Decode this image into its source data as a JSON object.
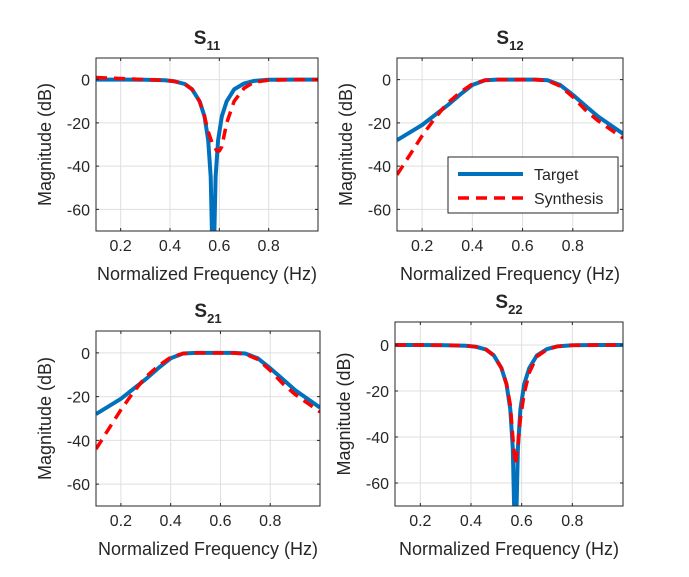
{
  "legend_labels": [
    "Target",
    "Synthesis"
  ],
  "colors": {
    "target": "#0072BD",
    "synthesis": "#FF0000",
    "grid": "#DFDFDF",
    "axis": "#262626"
  },
  "chart_data": [
    {
      "type": "line",
      "title": "S",
      "title_sub": "11",
      "xlabel": "Normalized Frequency (Hz)",
      "ylabel": "Magnitude (dB)",
      "xlim": [
        0.1,
        1.0
      ],
      "ylim": [
        -70,
        10
      ],
      "xticks": [
        0.2,
        0.4,
        0.6,
        0.8
      ],
      "yticks": [
        0,
        -20,
        -40,
        -60
      ],
      "grid": true,
      "series": [
        {
          "name": "Target",
          "x": [
            0.1,
            0.2,
            0.3,
            0.38,
            0.42,
            0.46,
            0.49,
            0.52,
            0.54,
            0.555,
            0.565,
            0.57,
            0.575,
            0.58,
            0.585,
            0.595,
            0.61,
            0.63,
            0.66,
            0.7,
            0.74,
            0.8,
            0.9,
            1.0
          ],
          "y": [
            0,
            0,
            -0.1,
            -0.3,
            -0.8,
            -2,
            -4.5,
            -10,
            -17,
            -28,
            -45,
            -70,
            -70,
            -70,
            -45,
            -28,
            -17,
            -10,
            -4.5,
            -1.8,
            -0.6,
            -0.1,
            0,
            0
          ]
        },
        {
          "name": "Synthesis",
          "x": [
            0.1,
            0.2,
            0.3,
            0.38,
            0.42,
            0.46,
            0.49,
            0.52,
            0.54,
            0.555,
            0.57,
            0.58,
            0.59,
            0.6,
            0.61,
            0.63,
            0.66,
            0.7,
            0.74,
            0.8,
            0.9,
            1.0
          ],
          "y": [
            1,
            0.5,
            0,
            -0.3,
            -0.8,
            -2,
            -4.5,
            -10,
            -17,
            -24,
            -29,
            -31,
            -33,
            -33,
            -31,
            -20,
            -10,
            -4,
            -1.2,
            -0.2,
            0,
            0
          ]
        }
      ]
    },
    {
      "type": "line",
      "title": "S",
      "title_sub": "12",
      "xlabel": "Normalized Frequency (Hz)",
      "ylabel": "Magnitude (dB)",
      "xlim": [
        0.1,
        1.0
      ],
      "ylim": [
        -70,
        10
      ],
      "xticks": [
        0.2,
        0.4,
        0.6,
        0.8
      ],
      "yticks": [
        0,
        -20,
        -40,
        -60
      ],
      "grid": true,
      "legend": "inside-right",
      "series": [
        {
          "name": "Target",
          "x": [
            0.1,
            0.2,
            0.3,
            0.35,
            0.4,
            0.45,
            0.5,
            0.55,
            0.6,
            0.65,
            0.7,
            0.75,
            0.8,
            0.85,
            0.9,
            1.0
          ],
          "y": [
            -28,
            -21,
            -12,
            -7,
            -2.5,
            -0.3,
            0,
            0,
            0,
            0,
            -0.3,
            -2.5,
            -7,
            -12,
            -17,
            -25
          ]
        },
        {
          "name": "Synthesis",
          "x": [
            0.1,
            0.15,
            0.2,
            0.25,
            0.3,
            0.35,
            0.4,
            0.45,
            0.5,
            0.55,
            0.6,
            0.65,
            0.7,
            0.75,
            0.8,
            0.85,
            0.9,
            1.0
          ],
          "y": [
            -44,
            -35,
            -26,
            -18,
            -11,
            -6,
            -2,
            -0.3,
            0,
            0,
            0,
            0,
            -0.5,
            -3,
            -8,
            -14,
            -19,
            -27
          ]
        }
      ]
    },
    {
      "type": "line",
      "title": "S",
      "title_sub": "21",
      "xlabel": "Normalized Frequency (Hz)",
      "ylabel": "Magnitude (dB)",
      "xlim": [
        0.1,
        1.0
      ],
      "ylim": [
        -70,
        10
      ],
      "xticks": [
        0.2,
        0.4,
        0.6,
        0.8
      ],
      "yticks": [
        0,
        -20,
        -40,
        -60
      ],
      "grid": true,
      "series": [
        {
          "name": "Target",
          "x": [
            0.1,
            0.2,
            0.3,
            0.35,
            0.4,
            0.45,
            0.5,
            0.55,
            0.6,
            0.65,
            0.7,
            0.75,
            0.8,
            0.85,
            0.9,
            1.0
          ],
          "y": [
            -28,
            -21,
            -12,
            -7,
            -2.5,
            -0.3,
            0,
            0,
            0,
            0,
            -0.3,
            -2.5,
            -7,
            -12,
            -17,
            -25
          ]
        },
        {
          "name": "Synthesis",
          "x": [
            0.1,
            0.15,
            0.2,
            0.25,
            0.3,
            0.35,
            0.4,
            0.45,
            0.5,
            0.55,
            0.6,
            0.65,
            0.7,
            0.75,
            0.8,
            0.85,
            0.9,
            1.0
          ],
          "y": [
            -44,
            -35,
            -26,
            -18,
            -11,
            -6,
            -2,
            -0.3,
            0,
            0,
            0,
            0,
            -0.5,
            -3,
            -8,
            -14,
            -19,
            -27
          ]
        }
      ]
    },
    {
      "type": "line",
      "title": "S",
      "title_sub": "22",
      "xlabel": "Normalized Frequency (Hz)",
      "ylabel": "Magnitude (dB)",
      "xlim": [
        0.1,
        1.0
      ],
      "ylim": [
        -70,
        10
      ],
      "xticks": [
        0.2,
        0.4,
        0.6,
        0.8
      ],
      "yticks": [
        0,
        -20,
        -40,
        -60
      ],
      "grid": true,
      "series": [
        {
          "name": "Target",
          "x": [
            0.1,
            0.2,
            0.3,
            0.38,
            0.42,
            0.46,
            0.49,
            0.52,
            0.54,
            0.555,
            0.565,
            0.57,
            0.575,
            0.58,
            0.585,
            0.595,
            0.61,
            0.63,
            0.66,
            0.7,
            0.74,
            0.8,
            0.9,
            1.0
          ],
          "y": [
            0,
            0,
            -0.1,
            -0.3,
            -0.8,
            -2,
            -4.5,
            -10,
            -17,
            -28,
            -45,
            -70,
            -70,
            -70,
            -45,
            -28,
            -17,
            -10,
            -4.5,
            -1.8,
            -0.6,
            -0.1,
            0,
            0
          ]
        },
        {
          "name": "Synthesis",
          "x": [
            0.1,
            0.2,
            0.3,
            0.38,
            0.42,
            0.46,
            0.49,
            0.52,
            0.54,
            0.555,
            0.565,
            0.575,
            0.585,
            0.595,
            0.61,
            0.63,
            0.66,
            0.7,
            0.74,
            0.8,
            0.9,
            1.0
          ],
          "y": [
            0,
            0,
            -0.1,
            -0.3,
            -0.8,
            -2,
            -4.5,
            -10,
            -17,
            -26,
            -40,
            -52,
            -44,
            -32,
            -21,
            -12,
            -5,
            -2,
            -0.6,
            -0.1,
            0,
            0
          ]
        }
      ]
    }
  ]
}
